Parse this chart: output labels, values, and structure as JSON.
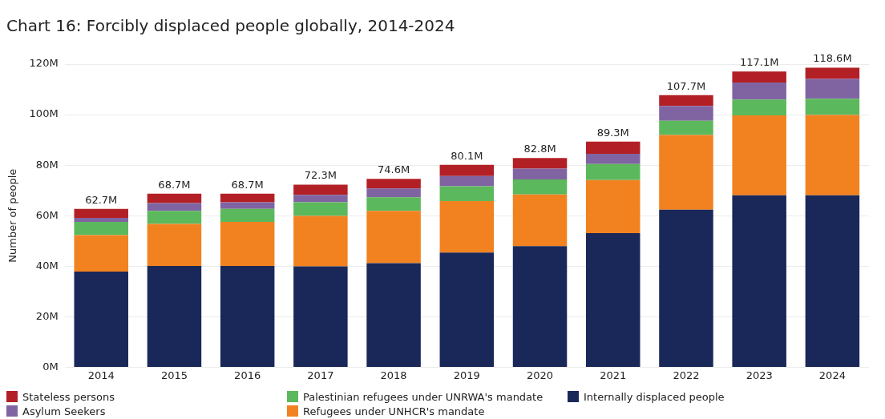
{
  "chart_data": {
    "type": "bar",
    "title": "Chart 16: Forcibly displaced people globally, 2014-2024",
    "ylabel": "Number of people",
    "categories": [
      "2014",
      "2015",
      "2016",
      "2017",
      "2018",
      "2019",
      "2020",
      "2021",
      "2022",
      "2023",
      "2024"
    ],
    "stacked": true,
    "series": [
      {
        "name": "Internally displaced people",
        "color": "#1a2859",
        "values": [
          37.9,
          40.1,
          40.1,
          39.9,
          41.2,
          45.4,
          47.9,
          53.1,
          62.4,
          68.1,
          68.1
        ]
      },
      {
        "name": "Refugees under UNHCR's mandate",
        "color": "#f28220",
        "values": [
          14.4,
          16.6,
          17.4,
          20.0,
          20.7,
          20.4,
          20.5,
          21.0,
          29.5,
          31.6,
          31.8
        ]
      },
      {
        "name": "Palestinian refugees under UNRWA's mandate",
        "color": "#5cb85c",
        "values": [
          5.2,
          5.2,
          5.2,
          5.4,
          5.4,
          5.8,
          5.9,
          6.3,
          5.7,
          6.3,
          6.4
        ]
      },
      {
        "name": "Asylum Seekers",
        "color": "#8064a2",
        "values": [
          1.6,
          3.1,
          2.6,
          2.9,
          3.5,
          4.1,
          4.3,
          4.1,
          5.8,
          6.7,
          7.8
        ]
      },
      {
        "name": "Stateless persons",
        "color": "#b22025",
        "values": [
          3.6,
          3.7,
          3.4,
          4.1,
          3.8,
          4.4,
          4.2,
          4.8,
          4.3,
          4.4,
          4.5
        ]
      }
    ],
    "totals": [
      "62.7M",
      "68.7M",
      "68.7M",
      "72.3M",
      "74.6M",
      "80.1M",
      "82.8M",
      "89.3M",
      "107.7M",
      "117.1M",
      "118.6M"
    ],
    "ylim": [
      0,
      120
    ],
    "yticks": [
      {
        "value": 0,
        "label": "0M"
      },
      {
        "value": 20,
        "label": "20M"
      },
      {
        "value": 40,
        "label": "40M"
      },
      {
        "value": 60,
        "label": "60M"
      },
      {
        "value": 80,
        "label": "80M"
      },
      {
        "value": 100,
        "label": "100M"
      },
      {
        "value": 120,
        "label": "120M"
      }
    ],
    "grid": "y",
    "legend": "bottom"
  }
}
